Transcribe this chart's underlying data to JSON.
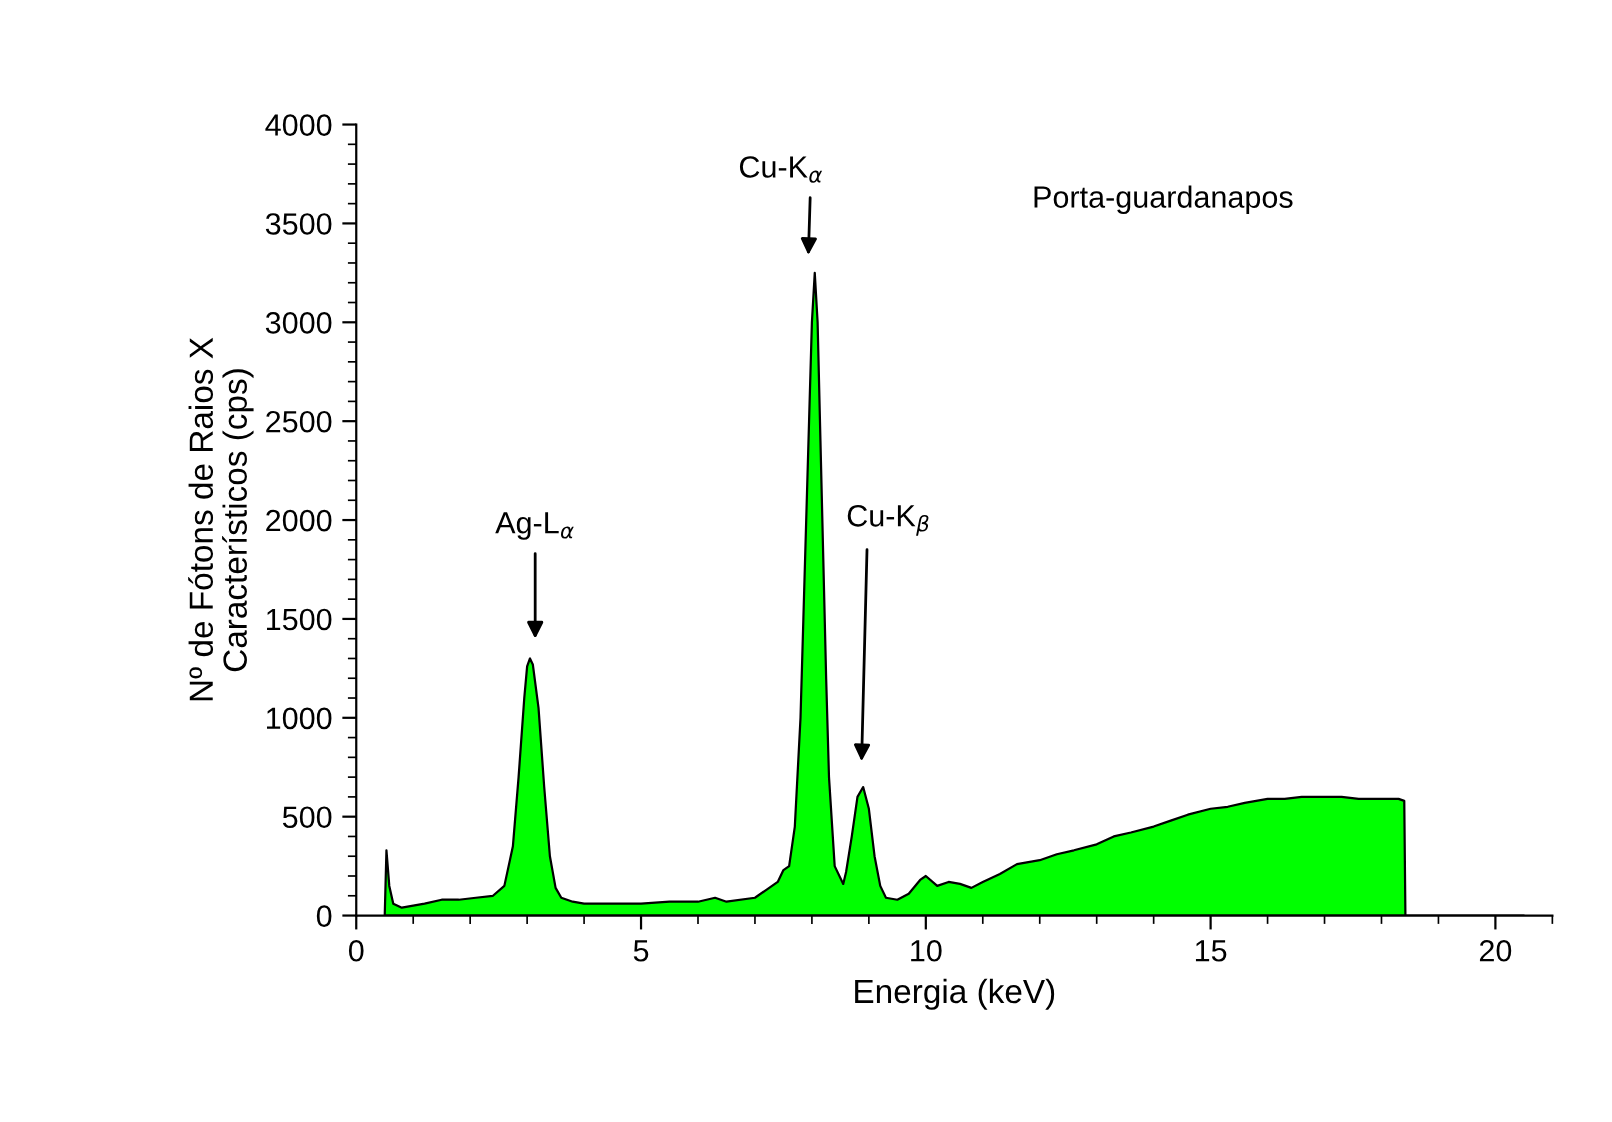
{
  "chart_data": {
    "type": "area",
    "xlabel": "Energia (keV)",
    "ylabel": "Nº de Fótons de Raios X\nCaracterísticos (cps)",
    "xlim": [
      0,
      21
    ],
    "xticks": [
      0,
      5,
      10,
      15,
      20
    ],
    "ylim": [
      0,
      4000
    ],
    "yticks": [
      0,
      500,
      1000,
      1500,
      2000,
      2500,
      3000,
      3500,
      4000
    ],
    "grid": false,
    "series": [
      {
        "color": "#00ff00",
        "x": [
          0.5,
          0.53,
          0.58,
          0.65,
          0.8,
          1.0,
          1.2,
          1.5,
          1.8,
          2.1,
          2.4,
          2.6,
          2.75,
          2.85,
          2.95,
          3.0,
          3.05,
          3.1,
          3.2,
          3.3,
          3.4,
          3.5,
          3.6,
          3.8,
          4.0,
          4.5,
          5.0,
          5.5,
          6.0,
          6.3,
          6.5,
          7.0,
          7.2,
          7.4,
          7.5,
          7.6,
          7.7,
          7.8,
          7.85,
          7.9,
          7.95,
          8.0,
          8.05,
          8.1,
          8.15,
          8.2,
          8.25,
          8.3,
          8.4,
          8.55,
          8.6,
          8.7,
          8.8,
          8.9,
          9.0,
          9.1,
          9.2,
          9.3,
          9.5,
          9.7,
          9.9,
          10.0,
          10.2,
          10.4,
          10.6,
          10.8,
          11.0,
          11.3,
          11.6,
          12.0,
          12.3,
          12.6,
          13.0,
          13.3,
          13.6,
          14.0,
          14.3,
          14.6,
          15.0,
          15.3,
          15.6,
          16.0,
          16.3,
          16.6,
          17.0,
          17.3,
          17.6,
          18.0,
          18.3,
          18.4,
          18.42,
          20.5
        ],
        "values": [
          0,
          330,
          150,
          60,
          40,
          50,
          60,
          80,
          80,
          90,
          100,
          150,
          350,
          700,
          1100,
          1260,
          1300,
          1270,
          1050,
          650,
          300,
          140,
          90,
          70,
          60,
          60,
          60,
          70,
          70,
          90,
          70,
          90,
          130,
          170,
          230,
          250,
          450,
          1000,
          1500,
          2000,
          2500,
          3000,
          3250,
          3000,
          2400,
          1800,
          1200,
          700,
          250,
          160,
          220,
          400,
          600,
          650,
          540,
          300,
          150,
          90,
          80,
          110,
          180,
          200,
          150,
          170,
          160,
          140,
          170,
          210,
          260,
          280,
          310,
          330,
          360,
          400,
          420,
          450,
          480,
          510,
          540,
          550,
          570,
          590,
          590,
          600,
          600,
          600,
          590,
          590,
          590,
          580,
          0,
          0
        ]
      }
    ],
    "annotations": [
      "Ag-L$_{α}$",
      "Cu-K$_{α}$",
      "Cu-K$_{β}$",
      "Porta-guardanapos"
    ]
  }
}
